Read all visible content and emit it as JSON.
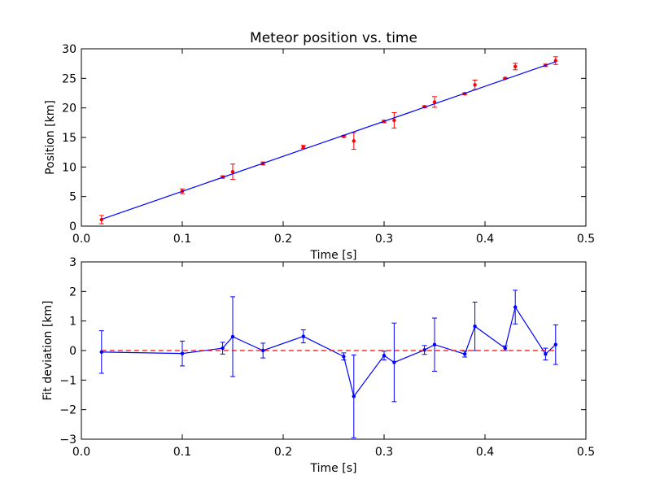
{
  "chart_data": [
    {
      "type": "scatter",
      "title": "Meteor position vs. time",
      "xlabel": "Time [s]",
      "ylabel": "Position [km]",
      "xlim": [
        0.0,
        0.5
      ],
      "ylim": [
        0,
        30
      ],
      "x_ticks": [
        0.0,
        0.1,
        0.2,
        0.3,
        0.4,
        0.5
      ],
      "x_tick_labels": [
        "0.0",
        "0.1",
        "0.2",
        "0.3",
        "0.4",
        "0.5"
      ],
      "y_ticks": [
        0,
        5,
        10,
        15,
        20,
        25,
        30
      ],
      "y_tick_labels": [
        "0",
        "5",
        "10",
        "15",
        "20",
        "25",
        "30"
      ],
      "grid": false,
      "series": [
        {
          "kind": "errorbar",
          "color": "#ff0000",
          "points": [
            {
              "x": 0.02,
              "y": 1.1,
              "err": 0.7
            },
            {
              "x": 0.1,
              "y": 5.9,
              "err": 0.4
            },
            {
              "x": 0.14,
              "y": 8.3,
              "err": 0.2
            },
            {
              "x": 0.15,
              "y": 9.2,
              "err": 1.3
            },
            {
              "x": 0.18,
              "y": 10.6,
              "err": 0.25
            },
            {
              "x": 0.22,
              "y": 13.4,
              "err": 0.25
            },
            {
              "x": 0.26,
              "y": 15.2,
              "err": 0.15
            },
            {
              "x": 0.27,
              "y": 14.4,
              "err": 1.4
            },
            {
              "x": 0.3,
              "y": 17.7,
              "err": 0.2
            },
            {
              "x": 0.31,
              "y": 17.9,
              "err": 1.3
            },
            {
              "x": 0.34,
              "y": 20.2,
              "err": 0.15
            },
            {
              "x": 0.35,
              "y": 21.0,
              "err": 0.9
            },
            {
              "x": 0.38,
              "y": 22.4,
              "err": 0.15
            },
            {
              "x": 0.39,
              "y": 23.9,
              "err": 0.8
            },
            {
              "x": 0.42,
              "y": 25.0,
              "err": 0.1
            },
            {
              "x": 0.43,
              "y": 27.0,
              "err": 0.55
            },
            {
              "x": 0.46,
              "y": 27.2,
              "err": 0.2
            },
            {
              "x": 0.47,
              "y": 28.0,
              "err": 0.65
            }
          ]
        },
        {
          "kind": "fit_line",
          "color": "#0000ff",
          "points": [
            {
              "x": 0.02,
              "y": 1.15
            },
            {
              "x": 0.47,
              "y": 27.8
            }
          ]
        }
      ]
    },
    {
      "type": "line",
      "xlabel": "Time [s]",
      "ylabel": "Fit deviation [km]",
      "xlim": [
        0.0,
        0.5
      ],
      "ylim": [
        -3,
        3
      ],
      "x_ticks": [
        0.0,
        0.1,
        0.2,
        0.3,
        0.4,
        0.5
      ],
      "x_tick_labels": [
        "0.0",
        "0.1",
        "0.2",
        "0.3",
        "0.4",
        "0.5"
      ],
      "y_ticks": [
        -3,
        -2,
        -1,
        0,
        1,
        2,
        3
      ],
      "y_tick_labels": [
        "−3",
        "−2",
        "−1",
        "0",
        "1",
        "2",
        "3"
      ],
      "grid": false,
      "series": [
        {
          "kind": "errorbar_line",
          "color": "#0000ff",
          "points": [
            {
              "x": 0.02,
              "y": -0.05,
              "err": 0.72
            },
            {
              "x": 0.1,
              "y": -0.1,
              "err": 0.42
            },
            {
              "x": 0.14,
              "y": 0.08,
              "err": 0.2
            },
            {
              "x": 0.15,
              "y": 0.47,
              "err": 1.35
            },
            {
              "x": 0.18,
              "y": 0.0,
              "err": 0.25
            },
            {
              "x": 0.22,
              "y": 0.48,
              "err": 0.22
            },
            {
              "x": 0.26,
              "y": -0.2,
              "err": 0.12
            },
            {
              "x": 0.27,
              "y": -1.55,
              "err": 1.4
            },
            {
              "x": 0.3,
              "y": -0.17,
              "err": 0.15
            },
            {
              "x": 0.31,
              "y": -0.4,
              "err": 1.33
            },
            {
              "x": 0.34,
              "y": 0.02,
              "err": 0.15
            },
            {
              "x": 0.35,
              "y": 0.2,
              "err": 0.9
            },
            {
              "x": 0.38,
              "y": -0.12,
              "err": 0.1
            },
            {
              "x": 0.39,
              "y": 0.82,
              "err": 0.82
            },
            {
              "x": 0.42,
              "y": 0.08,
              "err": 0.08
            },
            {
              "x": 0.43,
              "y": 1.47,
              "err": 0.57
            },
            {
              "x": 0.46,
              "y": -0.12,
              "err": 0.2
            },
            {
              "x": 0.47,
              "y": 0.2,
              "err": 0.67
            }
          ]
        },
        {
          "kind": "zero_line",
          "color": "#ff0000",
          "style": "dashed",
          "points": [
            {
              "x": 0.02,
              "y": 0
            },
            {
              "x": 0.47,
              "y": 0
            }
          ]
        }
      ]
    }
  ]
}
